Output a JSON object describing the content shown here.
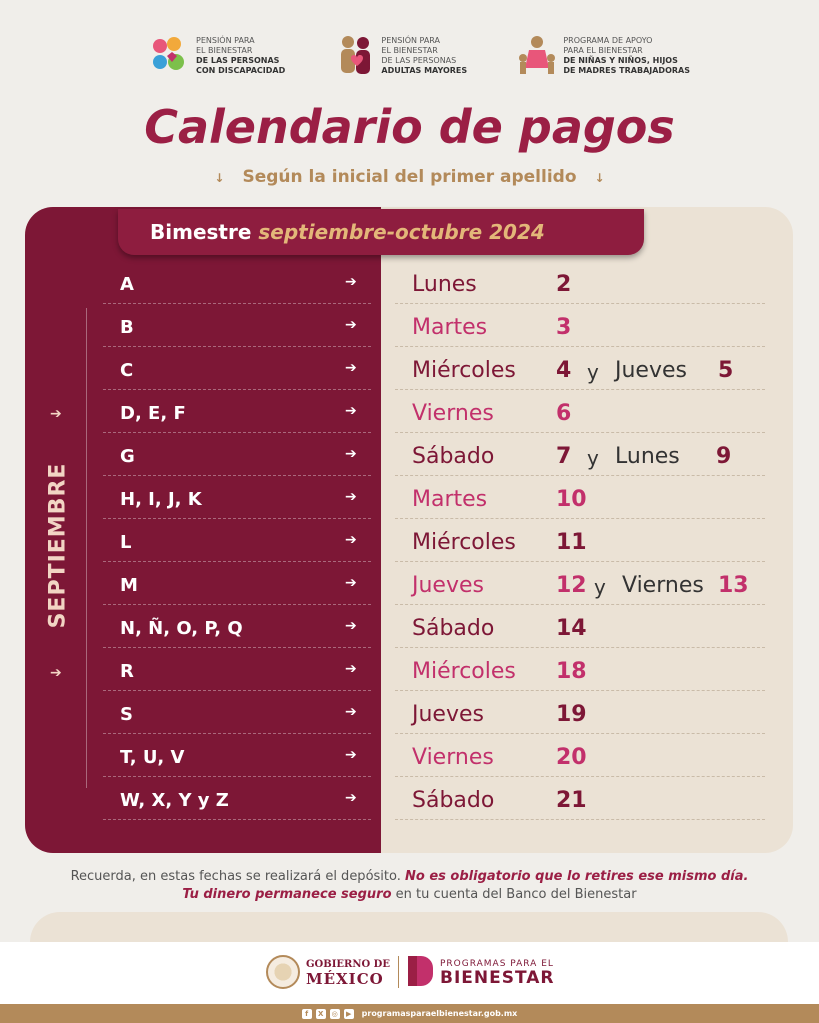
{
  "header": {
    "logos": [
      {
        "lines": [
          "PENSIÓN PARA",
          "EL BIENESTAR",
          "DE LAS PERSONAS",
          "CON DISCAPACIDAD"
        ]
      },
      {
        "lines": [
          "PENSIÓN PARA",
          "EL BIENESTAR",
          "DE LAS PERSONAS",
          "ADULTAS MAYORES"
        ]
      },
      {
        "lines": [
          "PROGRAMA DE APOYO",
          "PARA EL BIENESTAR",
          "DE NIÑAS Y NIÑOS, HIJOS",
          "DE MADRES TRABAJADORAS"
        ]
      }
    ]
  },
  "title": "Calendario de pagos",
  "subtitle": "Según la inicial del primer apellido",
  "bimestre": {
    "label": "Bimestre",
    "period": "septiembre-octubre 2024"
  },
  "month": "SEPTIEMBRE",
  "connector": "y",
  "rows": [
    {
      "letters": "A",
      "day1": "Lunes",
      "num1": "2"
    },
    {
      "letters": "B",
      "day1": "Martes",
      "num1": "3"
    },
    {
      "letters": "C",
      "day1": "Miércoles",
      "num1": "4",
      "day2": "Jueves",
      "num2": "5"
    },
    {
      "letters": "D, E, F",
      "day1": "Viernes",
      "num1": "6"
    },
    {
      "letters": "G",
      "day1": "Sábado",
      "num1": "7",
      "day2": "Lunes",
      "num2": "9"
    },
    {
      "letters": "H, I, J, K",
      "day1": "Martes",
      "num1": "10"
    },
    {
      "letters": "L",
      "day1": "Miércoles",
      "num1": "11"
    },
    {
      "letters": "M",
      "day1": "Jueves",
      "num1": "12",
      "day2": "Viernes",
      "num2": "13"
    },
    {
      "letters": "N, Ñ, O, P, Q",
      "day1": "Sábado",
      "num1": "14"
    },
    {
      "letters": "R",
      "day1": "Miércoles",
      "num1": "18"
    },
    {
      "letters": "S",
      "day1": "Jueves",
      "num1": "19"
    },
    {
      "letters": "T, U, V",
      "day1": "Viernes",
      "num1": "20"
    },
    {
      "letters": "W, X, Y y Z",
      "day1": "Sábado",
      "num1": "21"
    }
  ],
  "note": {
    "part1": "Recuerda, en estas fechas se realizará el depósito. ",
    "emph1": "No es obligatorio que lo retires ese mismo día.",
    "emph2": "Tu dinero permanece seguro",
    "part2": " en tu cuenta del Banco del Bienestar"
  },
  "footer": {
    "gob_line1": "GOBIERNO DE",
    "gob_line2": "MÉXICO",
    "bien_line1": "PROGRAMAS PARA EL",
    "bien_line2": "BIENESTAR",
    "website": "programasparaelbienestar.gob.mx"
  },
  "colors": {
    "primary": "#7d1736",
    "accent": "#c2306b",
    "gold": "#b38a5a",
    "cream": "#ebe2d5"
  },
  "icons": [
    "arrow-right-icon",
    "arrow-down-icon",
    "facebook-icon",
    "x-icon",
    "instagram-icon",
    "youtube-icon"
  ]
}
